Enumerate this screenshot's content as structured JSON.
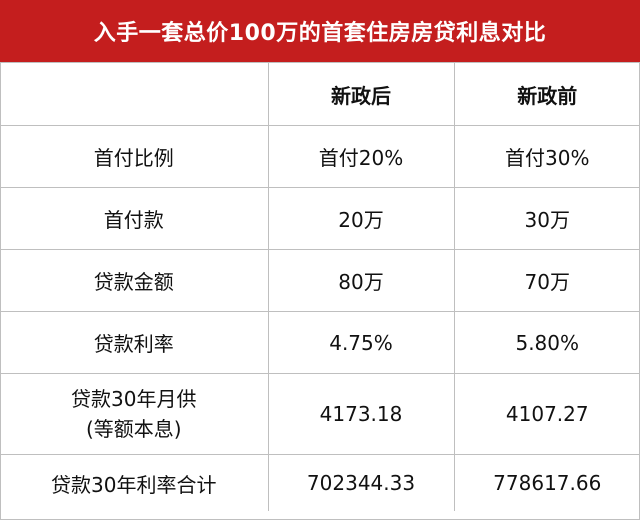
{
  "title": "入手一套总价100万的首套住房房贷利息对比",
  "columns": [
    "",
    "新政后",
    "新政前"
  ],
  "rows": [
    {
      "label": "首付比例",
      "after": "首付20%",
      "before": "首付30%"
    },
    {
      "label": "首付款",
      "after": "20万",
      "before": "30万"
    },
    {
      "label": "贷款金额",
      "after": "80万",
      "before": "70万"
    },
    {
      "label": "贷款利率",
      "after": "4.75%",
      "before": "5.80%"
    },
    {
      "label_line1": "贷款30年月供",
      "label_line2": "(等额本息)",
      "after": "4173.18",
      "before": "4107.27"
    },
    {
      "label": "贷款30年利率合计",
      "after": "702344.33",
      "before": "778617.66"
    }
  ],
  "colors": {
    "title_bg": "#c41e1e",
    "title_text": "#ffffff",
    "grid": "#bfbfbf"
  }
}
